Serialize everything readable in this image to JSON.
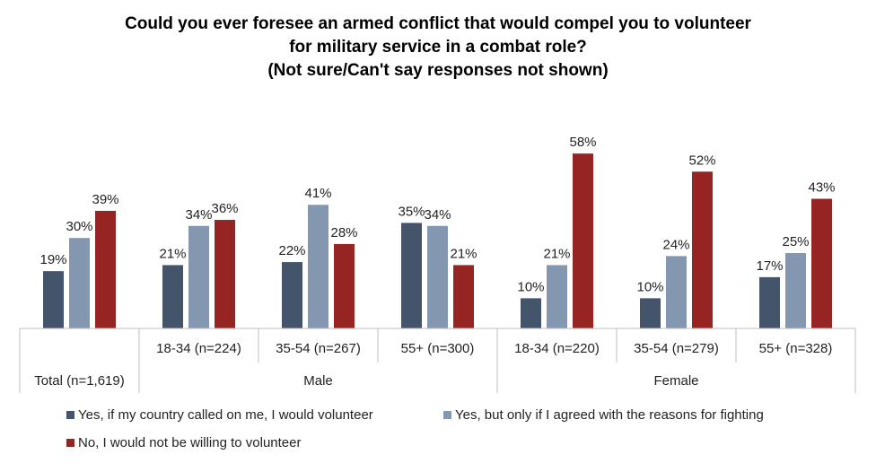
{
  "title_lines": [
    "Could you ever foresee an armed conflict that would compel you to volunteer",
    "for military service in a combat role?",
    "(Not sure/Can't say responses not shown)"
  ],
  "chart_data": {
    "type": "bar",
    "title": "Could you ever foresee an armed conflict that would compel you to volunteer for military service in a combat role? (Not sure/Can't say responses not shown)",
    "categories": [
      "Total (n=1,619)",
      "18-34 (n=224)",
      "35-54 (n=267)",
      "55+ (n=300)",
      "18-34 (n=220)",
      "35-54 (n=279)",
      "55+ (n=328)"
    ],
    "groups": [
      {
        "label": "",
        "categories": [
          "Total (n=1,619)"
        ]
      },
      {
        "label": "Male",
        "categories": [
          "18-34 (n=224)",
          "35-54 (n=267)",
          "55+ (n=300)"
        ]
      },
      {
        "label": "Female",
        "categories": [
          "18-34 (n=220)",
          "35-54 (n=279)",
          "55+ (n=328)"
        ]
      }
    ],
    "series": [
      {
        "name": "Yes, if my country called on me, I would volunteer",
        "color": "#44546A",
        "values": [
          19,
          21,
          22,
          35,
          10,
          10,
          17
        ]
      },
      {
        "name": "Yes, but only if I agreed with the reasons for fighting",
        "color": "#8497B0",
        "values": [
          30,
          34,
          41,
          34,
          21,
          24,
          25
        ]
      },
      {
        "name": "No, I would not be willing to volunteer",
        "color": "#962422",
        "values": [
          39,
          36,
          28,
          21,
          58,
          52,
          43
        ]
      }
    ],
    "value_suffix": "%",
    "ylim": [
      0,
      60
    ],
    "grid": false,
    "legend_position": "bottom"
  }
}
